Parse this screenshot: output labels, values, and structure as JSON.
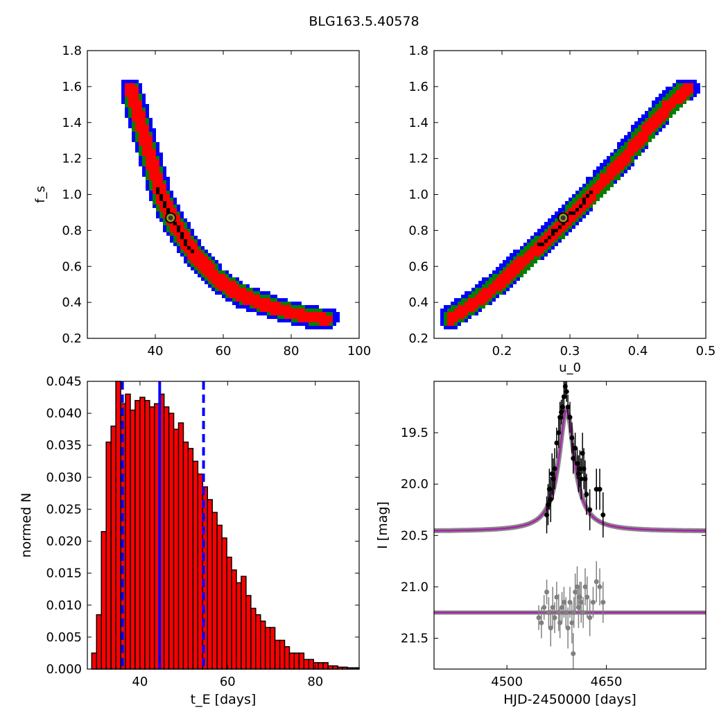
{
  "figure": {
    "title": "BLG163.5.40578"
  },
  "chart_data": [
    {
      "id": "tE-fs",
      "type": "heatmap",
      "xlabel": "",
      "ylabel": "f_s",
      "xlim": [
        20,
        100
      ],
      "ylim": [
        0.2,
        1.8
      ],
      "xticks": [
        "40",
        "60",
        "80",
        "100"
      ],
      "yticks": [
        "0.2",
        "0.4",
        "0.6",
        "0.8",
        "1.0",
        "1.2",
        "1.4",
        "1.6",
        "1.8"
      ],
      "band_colors": {
        "outer": "#0000ff",
        "mid": "#008000",
        "inner": "#ff0000",
        "core": "#000000"
      },
      "centerline": [
        [
          32,
          1.6
        ],
        [
          35,
          1.4
        ],
        [
          38,
          1.2
        ],
        [
          41,
          1.0
        ],
        [
          45,
          0.85
        ],
        [
          50,
          0.7
        ],
        [
          57,
          0.55
        ],
        [
          65,
          0.45
        ],
        [
          75,
          0.38
        ],
        [
          83,
          0.34
        ],
        [
          90,
          0.32
        ]
      ],
      "marker": {
        "x": 44.5,
        "y": 0.87
      }
    },
    {
      "id": "u0-fs",
      "type": "heatmap",
      "xlabel": "u_0",
      "ylabel": "",
      "xlim": [
        0.1,
        0.5
      ],
      "ylim": [
        0.2,
        1.8
      ],
      "xticks": [
        "0.2",
        "0.3",
        "0.4",
        "0.5"
      ],
      "yticks": [
        "0.2",
        "0.4",
        "0.6",
        "0.8",
        "1.0",
        "1.2",
        "1.4",
        "1.6",
        "1.8"
      ],
      "band_colors": {
        "outer": "#0000ff",
        "mid": "#008000",
        "inner": "#ff0000",
        "core": "#000000"
      },
      "centerline": [
        [
          0.12,
          0.32
        ],
        [
          0.16,
          0.42
        ],
        [
          0.2,
          0.54
        ],
        [
          0.24,
          0.68
        ],
        [
          0.28,
          0.82
        ],
        [
          0.32,
          0.98
        ],
        [
          0.36,
          1.14
        ],
        [
          0.4,
          1.32
        ],
        [
          0.44,
          1.5
        ],
        [
          0.47,
          1.6
        ]
      ],
      "marker": {
        "x": 0.29,
        "y": 0.87
      }
    },
    {
      "id": "tE-hist",
      "type": "bar",
      "xlabel": "t_E [days]",
      "ylabel": "normed N",
      "xlim": [
        28,
        90
      ],
      "ylim": [
        0,
        0.045
      ],
      "xticks": [
        "40",
        "60",
        "80"
      ],
      "yticks": [
        "0.000",
        "0.005",
        "0.010",
        "0.015",
        "0.020",
        "0.025",
        "0.030",
        "0.035",
        "0.040",
        "0.045"
      ],
      "bin_start": 29,
      "bin_width": 1.1,
      "values": [
        0.0025,
        0.0085,
        0.0215,
        0.0355,
        0.038,
        0.045,
        0.0415,
        0.043,
        0.0405,
        0.042,
        0.0425,
        0.042,
        0.041,
        0.0415,
        0.043,
        0.041,
        0.04,
        0.0375,
        0.0385,
        0.0355,
        0.0345,
        0.0325,
        0.0305,
        0.0285,
        0.0265,
        0.0245,
        0.0225,
        0.0205,
        0.0175,
        0.0155,
        0.0135,
        0.0145,
        0.0115,
        0.0095,
        0.0085,
        0.0075,
        0.0065,
        0.0065,
        0.0045,
        0.0045,
        0.0035,
        0.0025,
        0.0025,
        0.0025,
        0.0015,
        0.0015,
        0.001,
        0.001,
        0.001,
        0.0005,
        0.0005,
        0.0003,
        0.0003,
        0.0002,
        0.0002,
        0.0002
      ],
      "bar_color": "#ff0000",
      "median": 44.5,
      "interval": [
        36,
        54.5
      ],
      "line_color": "#0000ff"
    },
    {
      "id": "lightcurve",
      "type": "scatter",
      "xlabel": "HJD-2450000 [days]",
      "ylabel": "I [mag]",
      "xlim": [
        4390,
        4800
      ],
      "ylim": [
        21.8,
        19.0
      ],
      "xticks": [
        "4500",
        "4650"
      ],
      "yticks": [
        "19.5",
        "20.0",
        "20.5",
        "21.0",
        "21.5"
      ],
      "model": {
        "baseline": 20.46,
        "peak": 19.28,
        "t0": 4590,
        "tE": 11,
        "color": "#aa22aa"
      },
      "residual_baseline": 21.25,
      "data_points": [
        [
          4560,
          20.3,
          0.18
        ],
        [
          4562,
          20.2,
          0.2
        ],
        [
          4564,
          20.05,
          0.2
        ],
        [
          4566,
          20.15,
          0.22
        ],
        [
          4568,
          19.9,
          0.2
        ],
        [
          4570,
          19.95,
          0.2
        ],
        [
          4572,
          19.85,
          0.2
        ],
        [
          4575,
          19.6,
          0.15
        ],
        [
          4578,
          19.5,
          0.15
        ],
        [
          4580,
          19.35,
          0.15
        ],
        [
          4582,
          19.3,
          0.12
        ],
        [
          4584,
          19.25,
          0.12
        ],
        [
          4586,
          19.15,
          0.15
        ],
        [
          4588,
          19.05,
          0.1
        ],
        [
          4590,
          19.1,
          0.1
        ],
        [
          4592,
          19.25,
          0.12
        ],
        [
          4595,
          19.35,
          0.15
        ],
        [
          4598,
          19.55,
          0.15
        ],
        [
          4600,
          19.75,
          0.15
        ],
        [
          4603,
          19.65,
          0.15
        ],
        [
          4606,
          19.8,
          0.15
        ],
        [
          4608,
          19.9,
          0.18
        ],
        [
          4610,
          19.85,
          0.18
        ],
        [
          4612,
          19.95,
          0.2
        ],
        [
          4614,
          19.7,
          0.2
        ],
        [
          4616,
          19.85,
          0.2
        ],
        [
          4618,
          19.95,
          0.18
        ],
        [
          4620,
          20.1,
          0.2
        ],
        [
          4625,
          20.25,
          0.2
        ],
        [
          4635,
          20.05,
          0.2
        ],
        [
          4640,
          20.05,
          0.2
        ],
        [
          4645,
          20.3,
          0.22
        ]
      ],
      "residual_points": [
        [
          4548,
          21.3,
          0.12
        ],
        [
          4552,
          21.35,
          0.15
        ],
        [
          4556,
          21.2,
          0.12
        ],
        [
          4560,
          21.05,
          0.12
        ],
        [
          4563,
          21.25,
          0.15
        ],
        [
          4566,
          21.4,
          0.18
        ],
        [
          4569,
          21.2,
          0.2
        ],
        [
          4572,
          21.3,
          0.15
        ],
        [
          4575,
          21.1,
          0.15
        ],
        [
          4578,
          21.25,
          0.18
        ],
        [
          4580,
          21.35,
          0.15
        ],
        [
          4583,
          21.2,
          0.15
        ],
        [
          4586,
          21.15,
          0.15
        ],
        [
          4589,
          21.25,
          0.15
        ],
        [
          4592,
          21.4,
          0.2
        ],
        [
          4595,
          21.15,
          0.15
        ],
        [
          4598,
          21.35,
          0.2
        ],
        [
          4601,
          21.25,
          0.15
        ],
        [
          4603,
          21.05,
          0.18
        ],
        [
          4606,
          21.0,
          0.2
        ],
        [
          4608,
          21.2,
          0.2
        ],
        [
          4610,
          21.1,
          0.15
        ],
        [
          4612,
          21.15,
          0.2
        ],
        [
          4615,
          21.25,
          0.15
        ],
        [
          4618,
          21.0,
          0.18
        ],
        [
          4621,
          21.1,
          0.2
        ],
        [
          4625,
          21.3,
          0.18
        ],
        [
          4630,
          21.15,
          0.15
        ],
        [
          4635,
          20.95,
          0.2
        ],
        [
          4640,
          21.0,
          0.18
        ],
        [
          4645,
          21.15,
          0.2
        ],
        [
          4600,
          21.65,
          0.2
        ]
      ]
    }
  ]
}
